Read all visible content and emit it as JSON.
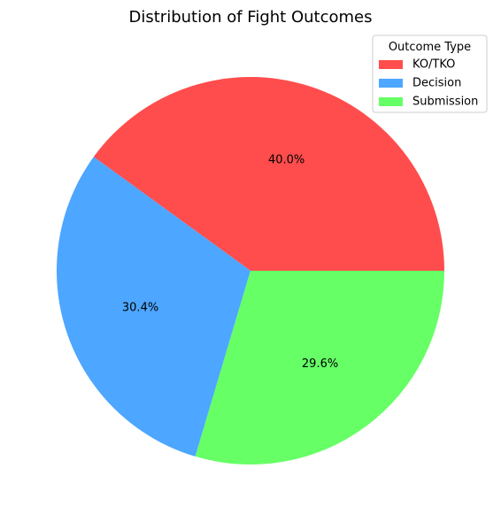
{
  "chart_data": {
    "type": "pie",
    "title": "Distribution of Fight Outcomes",
    "categories": [
      "KO/TKO",
      "Decision",
      "Submission"
    ],
    "values": [
      40.0,
      30.4,
      29.6
    ],
    "value_labels": [
      "40.0%",
      "30.4%",
      "29.6%"
    ],
    "colors": [
      "#ff4d4d",
      "#4da6ff",
      "#66ff66"
    ],
    "start_angle_deg": 0,
    "direction": "counterclockwise",
    "legend": {
      "title": "Outcome Type",
      "placement": "top-right",
      "entries": [
        "KO/TKO",
        "Decision",
        "Submission"
      ]
    }
  }
}
